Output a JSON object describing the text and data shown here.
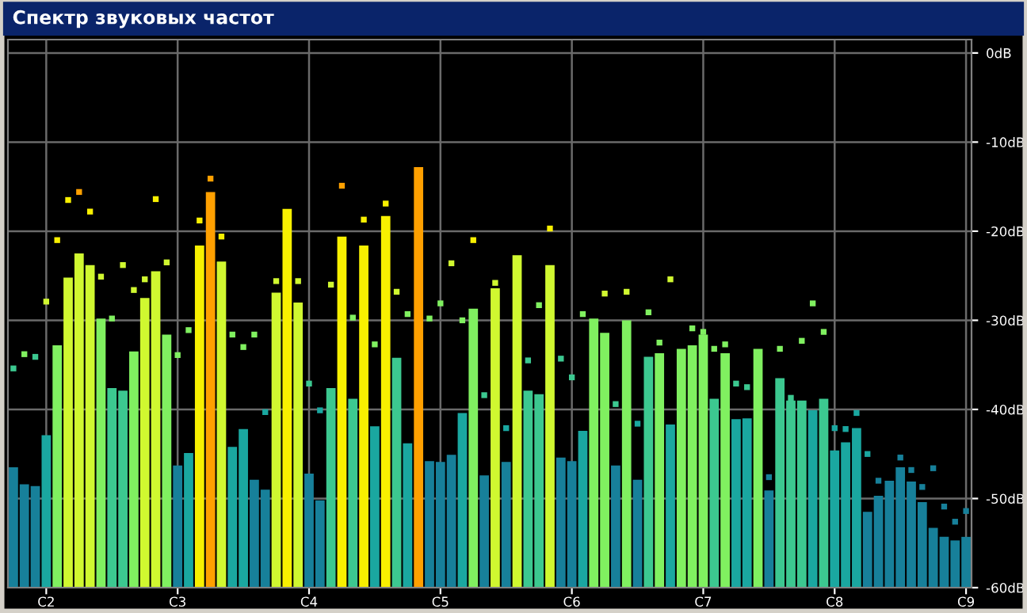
{
  "chart_data": {
    "type": "bar",
    "title": "Спектр звуковых частот",
    "categories": [
      null,
      null,
      null,
      "C2",
      null,
      null,
      null,
      null,
      null,
      null,
      null,
      null,
      null,
      null,
      null,
      "C3",
      null,
      null,
      null,
      null,
      null,
      null,
      null,
      null,
      null,
      null,
      null,
      "C4",
      null,
      null,
      null,
      null,
      null,
      null,
      null,
      null,
      null,
      null,
      null,
      "C5",
      null,
      null,
      null,
      null,
      null,
      null,
      null,
      null,
      null,
      null,
      null,
      "C6",
      null,
      null,
      null,
      null,
      null,
      null,
      null,
      null,
      null,
      null,
      null,
      "C7",
      null,
      null,
      null,
      null,
      null,
      null,
      null,
      null,
      null,
      null,
      null,
      "C8",
      null,
      null,
      null,
      null,
      null,
      null,
      null,
      null,
      null,
      null,
      null,
      "C9"
    ],
    "series": [
      {
        "values": [
          13.5,
          11.6,
          11.4,
          17.1,
          27.2,
          34.8,
          37.5,
          36.2,
          30.2,
          22.4,
          22.1,
          26.5,
          32.5,
          35.5,
          28.4,
          13.7,
          15.1,
          38.4,
          44.4,
          36.6,
          15.8,
          17.8,
          12.1,
          11.0,
          33.1,
          42.5,
          32.0,
          12.8,
          9.8,
          22.4,
          39.4,
          21.2,
          38.4,
          18.1,
          41.7,
          25.8,
          16.2,
          47.2,
          14.2,
          14.1,
          14.9,
          19.6,
          31.3,
          12.6,
          33.6,
          14.1,
          37.3,
          22.1,
          21.7,
          36.2,
          14.6,
          14.2,
          17.6,
          30.2,
          28.6,
          13.7,
          30.0,
          12.1,
          25.9,
          26.3,
          18.3,
          26.8,
          27.2,
          28.4,
          21.2,
          26.3,
          18.9,
          19.0,
          26.8,
          10.9,
          23.5,
          21.0,
          21.0,
          19.9,
          21.2,
          15.4,
          16.3,
          17.9,
          8.5,
          10.3,
          12.0,
          13.5,
          11.9,
          9.6,
          6.7,
          5.7,
          5.3,
          5.7
        ],
        "base": [
          -60,
          -60,
          -60,
          -60,
          -60,
          -60,
          -60,
          -60,
          -60,
          -60,
          -60,
          -60,
          -60,
          -60,
          -60,
          -60,
          -60,
          -60,
          -60,
          -60,
          -60,
          -60,
          -60,
          -60,
          -60,
          -60,
          -60,
          -60,
          -60,
          -60,
          -60,
          -60,
          -60,
          -60,
          -60,
          -60,
          -60,
          -60,
          -60,
          -60,
          -60,
          -60,
          -60,
          -60,
          -60,
          -60,
          -60,
          -60,
          -60,
          -60,
          -60,
          -60,
          -60,
          -60,
          -60,
          -60,
          -60,
          -60,
          -60,
          -60,
          -60,
          -60,
          -60,
          -60,
          -60,
          -60,
          -60,
          -60,
          -60,
          -60,
          -60,
          -60,
          -60,
          -60,
          -60,
          -60,
          -60,
          -60,
          -60,
          -60,
          -60,
          -60,
          -60,
          -60,
          -60,
          -60,
          -60,
          -60
        ],
        "colors": [
          "#17809a",
          "#17809a",
          "#17809a",
          "#1aa7a0",
          "#80f060",
          "#d0f830",
          "#d0f830",
          "#d0f830",
          "#80f060",
          "#3cc890",
          "#3cc890",
          "#80f060",
          "#d0f830",
          "#d0f830",
          "#80f060",
          "#17809a",
          "#1aa7a0",
          "#f8f000",
          "#ffa000",
          "#d0f830",
          "#1aa7a0",
          "#1aa7a0",
          "#17809a",
          "#17809a",
          "#d0f830",
          "#f8f000",
          "#d0f830",
          "#17809a",
          "#17809a",
          "#3cc890",
          "#f8f000",
          "#3cc890",
          "#f8f000",
          "#1aa7a0",
          "#f8f000",
          "#3cc890",
          "#1aa7a0",
          "#ffa000",
          "#17809a",
          "#17809a",
          "#17809a",
          "#1aa7a0",
          "#80f060",
          "#17809a",
          "#d0f830",
          "#17809a",
          "#d0f830",
          "#3cc890",
          "#3cc890",
          "#d0f830",
          "#17809a",
          "#17809a",
          "#1aa7a0",
          "#80f060",
          "#80f060",
          "#17809a",
          "#80f060",
          "#17809a",
          "#3cc890",
          "#80f060",
          "#1aa7a0",
          "#80f060",
          "#80f060",
          "#80f060",
          "#3cc890",
          "#80f060",
          "#1aa7a0",
          "#1aa7a0",
          "#80f060",
          "#17809a",
          "#3cc890",
          "#3cc890",
          "#3cc890",
          "#1aa7a0",
          "#3cc890",
          "#1aa7a0",
          "#1aa7a0",
          "#1aa7a0",
          "#17809a",
          "#17809a",
          "#17809a",
          "#17809a",
          "#17809a",
          "#17809a",
          "#17809a",
          "#17809a",
          "#17809a",
          "#17809a"
        ]
      },
      {
        "type": "scatter",
        "marker": "square",
        "values": [
          -35.4,
          -33.8,
          -34.1,
          -27.9,
          -21.0,
          -16.5,
          -15.6,
          -17.8,
          -25.1,
          -29.8,
          -23.8,
          -26.6,
          -25.4,
          -16.4,
          -23.5,
          -33.9,
          -31.1,
          -18.8,
          -14.1,
          -20.6,
          -31.6,
          -33.0,
          -31.6,
          -40.3,
          -25.6,
          null,
          -25.6,
          -37.1,
          -40.1,
          -26.0,
          -14.9,
          -29.7,
          -18.7,
          -32.7,
          -16.9,
          -26.8,
          -29.3,
          null,
          -29.8,
          -28.1,
          -23.6,
          -30.0,
          -21.0,
          -38.4,
          -25.8,
          -42.1,
          null,
          -34.5,
          -28.3,
          -19.7,
          -34.3,
          -36.4,
          -29.3,
          null,
          -27.0,
          -39.4,
          -26.8,
          -41.6,
          -29.1,
          -32.5,
          -25.4,
          null,
          -30.9,
          -31.3,
          -33.2,
          -32.7,
          -37.1,
          -37.5,
          null,
          -47.6,
          -33.2,
          -38.7,
          -32.3,
          -28.1,
          -31.3,
          -42.1,
          -42.2,
          -40.4,
          -45.0,
          -48.0,
          null,
          -45.4,
          -46.8,
          -48.7,
          -46.6,
          -50.9,
          -52.6,
          -51.4
        ],
        "colors": [
          "#3cc890",
          "#80f060",
          "#3cc890",
          "#d0f830",
          "#f8f000",
          "#f8f000",
          "#ffa000",
          "#f8f000",
          "#d0f830",
          "#80f060",
          "#d0f830",
          "#d0f830",
          "#d0f830",
          "#f8f000",
          "#d0f830",
          "#80f060",
          "#80f060",
          "#f8f000",
          "#ffa000",
          "#f8f000",
          "#80f060",
          "#80f060",
          "#80f060",
          "#1aa7a0",
          "#d0f830",
          null,
          "#d0f830",
          "#3cc890",
          "#1aa7a0",
          "#d0f830",
          "#ffa000",
          "#80f060",
          "#f8f000",
          "#80f060",
          "#f8f000",
          "#d0f830",
          "#80f060",
          null,
          "#80f060",
          "#80f060",
          "#d0f830",
          "#80f060",
          "#f8f000",
          "#3cc890",
          "#d0f830",
          "#1aa7a0",
          null,
          "#3cc890",
          "#80f060",
          "#f8f000",
          "#3cc890",
          "#3cc890",
          "#80f060",
          null,
          "#d0f830",
          "#3cc890",
          "#d0f830",
          "#1aa7a0",
          "#80f060",
          "#80f060",
          "#d0f830",
          null,
          "#80f060",
          "#80f060",
          "#80f060",
          "#80f060",
          "#3cc890",
          "#3cc890",
          null,
          "#17809a",
          "#80f060",
          "#3cc890",
          "#80f060",
          "#80f060",
          "#80f060",
          "#1aa7a0",
          "#1aa7a0",
          "#1aa7a0",
          "#1aa7a0",
          "#17809a",
          null,
          "#17809a",
          "#17809a",
          "#17809a",
          "#17809a",
          "#17809a",
          "#17809a",
          "#17809a"
        ]
      }
    ],
    "ylim": [
      -60,
      1.5
    ],
    "yticks": [
      {
        "value": 0,
        "label": "0dB"
      },
      {
        "value": -10,
        "label": "-10dB"
      },
      {
        "value": -20,
        "label": "-20dB"
      },
      {
        "value": -30,
        "label": "-30dB"
      },
      {
        "value": -40,
        "label": "-40dB"
      },
      {
        "value": -50,
        "label": "-50dB"
      },
      {
        "value": -60,
        "label": "-60dB"
      }
    ],
    "grid": true
  }
}
